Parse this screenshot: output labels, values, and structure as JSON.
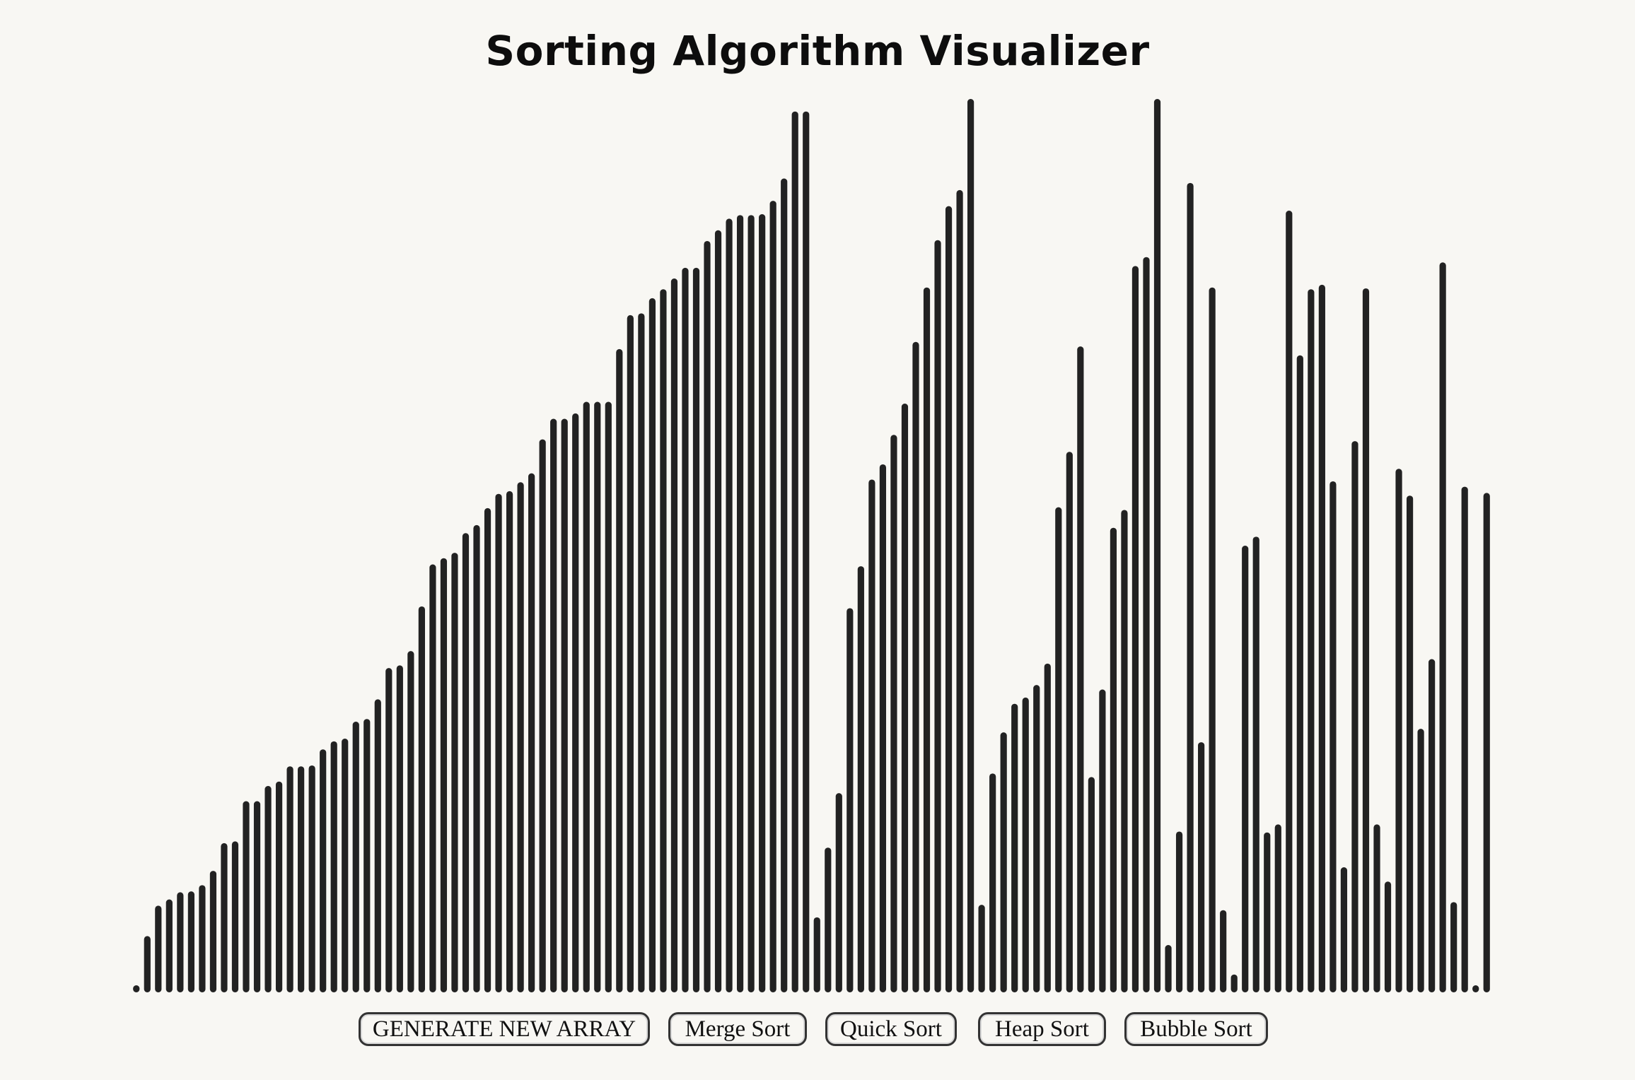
{
  "page": {
    "title": "Sorting Algorithm Visualizer"
  },
  "controls": {
    "generate_label": "GENERATE NEW ARRAY",
    "merge_label": "Merge Sort",
    "quick_label": "Quick Sort",
    "heap_label": "Heap Sort",
    "bubble_label": "Bubble Sort"
  },
  "colors": {
    "background": "#f8f7f3",
    "bar": "#222222",
    "button_border": "#333333"
  },
  "array": {
    "max_value": 1000,
    "values": [
      5,
      63,
      97,
      104,
      112,
      113,
      120,
      136,
      167,
      169,
      214,
      214,
      231,
      236,
      253,
      253,
      254,
      272,
      281,
      284,
      303,
      306,
      328,
      363,
      366,
      382,
      432,
      479,
      486,
      492,
      514,
      523,
      542,
      558,
      561,
      571,
      581,
      619,
      642,
      642,
      648,
      661,
      661,
      661,
      720,
      758,
      760,
      777,
      787,
      799,
      811,
      811,
      841,
      853,
      866,
      870,
      870,
      871,
      886,
      911,
      986,
      986,
      84,
      162,
      223,
      430,
      477,
      574,
      591,
      624,
      659,
      728,
      789,
      842,
      880,
      898,
      1000,
      98,
      245,
      291,
      323,
      330,
      344,
      368,
      543,
      605,
      723,
      241,
      339,
      520,
      540,
      813,
      823,
      1000,
      53,
      180,
      906,
      280,
      789,
      92,
      20,
      500,
      510,
      179,
      188,
      875,
      713,
      787,
      792,
      572,
      140,
      617,
      788,
      188,
      124,
      586,
      556,
      295,
      373,
      817,
      101,
      566,
      6,
      559
    ]
  }
}
